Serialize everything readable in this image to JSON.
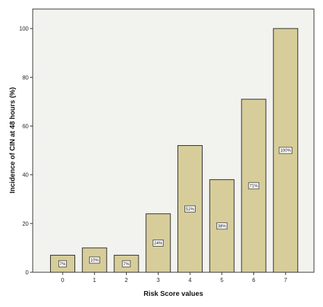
{
  "chart_data": {
    "type": "bar",
    "title": "",
    "xlabel": "Risk Score values",
    "ylabel": "Incidence of CIN at 48 hours (%)",
    "categories": [
      "0",
      "1",
      "2",
      "3",
      "4",
      "5",
      "6",
      "7"
    ],
    "values": [
      7,
      10,
      7,
      24,
      52,
      38,
      71,
      100
    ],
    "bar_labels": [
      "7%",
      "10%",
      "7%",
      "24%",
      "52%",
      "38%",
      "71%",
      "100%"
    ],
    "ylim": [
      0,
      108
    ],
    "yticks": [
      0,
      20,
      40,
      60,
      80,
      100
    ],
    "grid": false,
    "legend": "none",
    "colors": {
      "bar_fill": "#d6cd9a",
      "bar_stroke": "#2a2a2a",
      "plot_background": "#f2f2ee",
      "frame": "#333333"
    }
  }
}
